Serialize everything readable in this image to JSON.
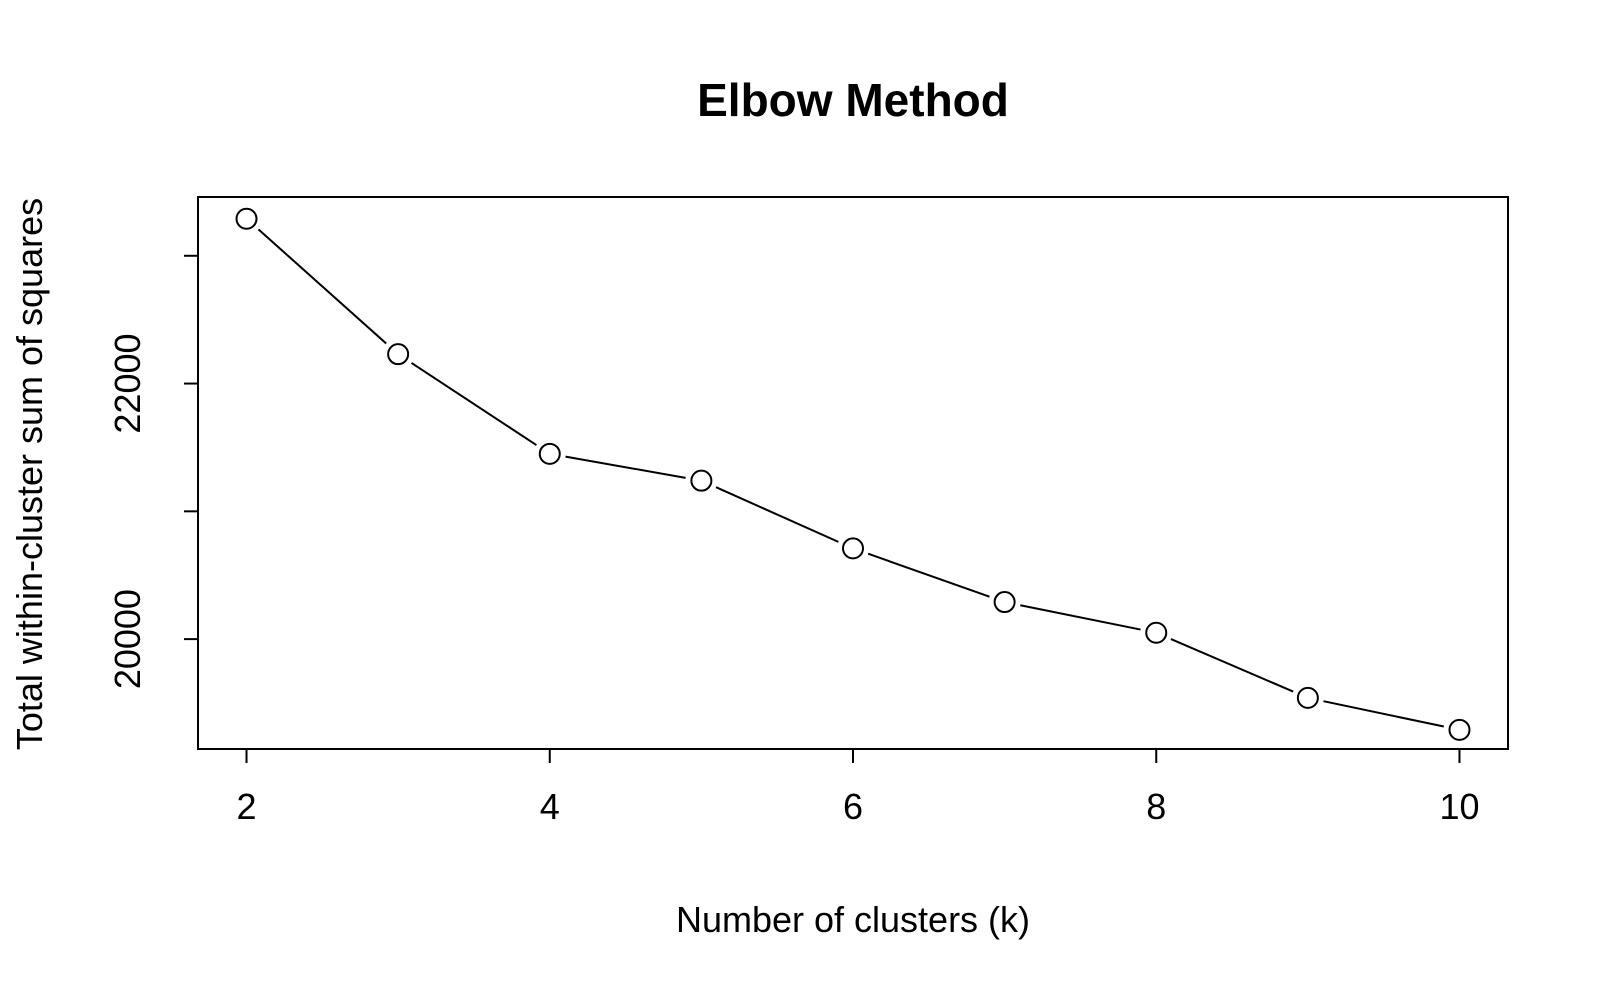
{
  "chart_data": {
    "type": "line",
    "title": "Elbow Method",
    "xlabel": "Number of clusters (k)",
    "ylabel": "Total within-cluster sum of squares",
    "x": [
      2,
      3,
      4,
      5,
      6,
      7,
      8,
      9,
      10
    ],
    "y": [
      23290,
      22230,
      21450,
      21240,
      20710,
      20290,
      20050,
      19540,
      19290
    ],
    "xlim": [
      1.68,
      10.32
    ],
    "ylim": [
      19140,
      23460
    ],
    "xticks": [
      2,
      4,
      6,
      8,
      10
    ],
    "xtick_labels": [
      "2",
      "4",
      "6",
      "8",
      "10"
    ],
    "yticks": [
      20000,
      21000,
      22000,
      23000
    ],
    "ytick_labels": [
      "20000",
      "",
      "22000",
      ""
    ],
    "marker": "open-circle",
    "line_color": "#000000",
    "grid": false,
    "legend": "none"
  }
}
